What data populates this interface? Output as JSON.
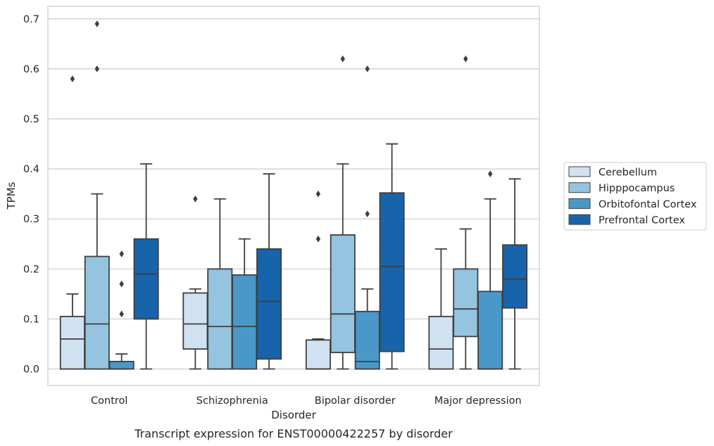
{
  "chart_data": {
    "type": "boxplot",
    "title": "",
    "caption": "Transcript expression for ENST00000422257 by disorder",
    "xlabel": "Disorder",
    "ylabel": "TPMs",
    "ylim": [
      -0.033,
      0.725
    ],
    "yticks": [
      0.0,
      0.1,
      0.2,
      0.3,
      0.4,
      0.5,
      0.6,
      0.7
    ],
    "ytick_labels": [
      "0.0",
      "0.1",
      "0.2",
      "0.3",
      "0.4",
      "0.5",
      "0.6",
      "0.7"
    ],
    "grid": "horizontal",
    "legend_placement": "outside-right",
    "categories": [
      "Control",
      "Schizophrenia",
      "Bipolar disorder",
      "Major depression"
    ],
    "series": [
      {
        "name": "Cerebellum",
        "color": "#d0e1f2",
        "boxes": [
          {
            "whislo": 0.0,
            "q1": 0.0,
            "med": 0.06,
            "q3": 0.105,
            "whishi": 0.15,
            "fliers": [
              0.58
            ]
          },
          {
            "whislo": 0.0,
            "q1": 0.04,
            "med": 0.09,
            "q3": 0.152,
            "whishi": 0.16,
            "fliers": [
              0.34
            ]
          },
          {
            "whislo": 0.0,
            "q1": 0.0,
            "med": 0.0,
            "q3": 0.058,
            "whishi": 0.06,
            "fliers": [
              0.35,
              0.26
            ]
          },
          {
            "whislo": 0.0,
            "q1": 0.0,
            "med": 0.04,
            "q3": 0.105,
            "whishi": 0.24,
            "fliers": []
          }
        ]
      },
      {
        "name": "Hipppocampus",
        "color": "#94c4df",
        "boxes": [
          {
            "whislo": 0.0,
            "q1": 0.0,
            "med": 0.09,
            "q3": 0.225,
            "whishi": 0.35,
            "fliers": [
              0.69,
              0.6
            ]
          },
          {
            "whislo": 0.0,
            "q1": 0.0,
            "med": 0.085,
            "q3": 0.2,
            "whishi": 0.34,
            "fliers": []
          },
          {
            "whislo": 0.0,
            "q1": 0.033,
            "med": 0.11,
            "q3": 0.268,
            "whishi": 0.41,
            "fliers": [
              0.62
            ]
          },
          {
            "whislo": 0.0,
            "q1": 0.065,
            "med": 0.12,
            "q3": 0.2,
            "whishi": 0.28,
            "fliers": [
              0.62
            ]
          }
        ]
      },
      {
        "name": "Orbitofontal Cortex",
        "color": "#4a98c9",
        "boxes": [
          {
            "whislo": 0.0,
            "q1": 0.0,
            "med": 0.0,
            "q3": 0.015,
            "whishi": 0.03,
            "fliers": [
              0.23,
              0.17,
              0.11
            ]
          },
          {
            "whislo": 0.0,
            "q1": 0.0,
            "med": 0.085,
            "q3": 0.188,
            "whishi": 0.26,
            "fliers": []
          },
          {
            "whislo": 0.0,
            "q1": 0.0,
            "med": 0.015,
            "q3": 0.115,
            "whishi": 0.16,
            "fliers": [
              0.6,
              0.31
            ]
          },
          {
            "whislo": 0.0,
            "q1": 0.0,
            "med": 0.0,
            "q3": 0.155,
            "whishi": 0.34,
            "fliers": [
              0.39
            ]
          }
        ]
      },
      {
        "name": "Prefrontal Cortex",
        "color": "#1764ab",
        "boxes": [
          {
            "whislo": 0.0,
            "q1": 0.1,
            "med": 0.19,
            "q3": 0.26,
            "whishi": 0.41,
            "fliers": []
          },
          {
            "whislo": 0.0,
            "q1": 0.02,
            "med": 0.135,
            "q3": 0.24,
            "whishi": 0.39,
            "fliers": []
          },
          {
            "whislo": 0.0,
            "q1": 0.035,
            "med": 0.205,
            "q3": 0.352,
            "whishi": 0.45,
            "fliers": []
          },
          {
            "whislo": 0.0,
            "q1": 0.122,
            "med": 0.18,
            "q3": 0.248,
            "whishi": 0.38,
            "fliers": []
          }
        ]
      }
    ]
  }
}
